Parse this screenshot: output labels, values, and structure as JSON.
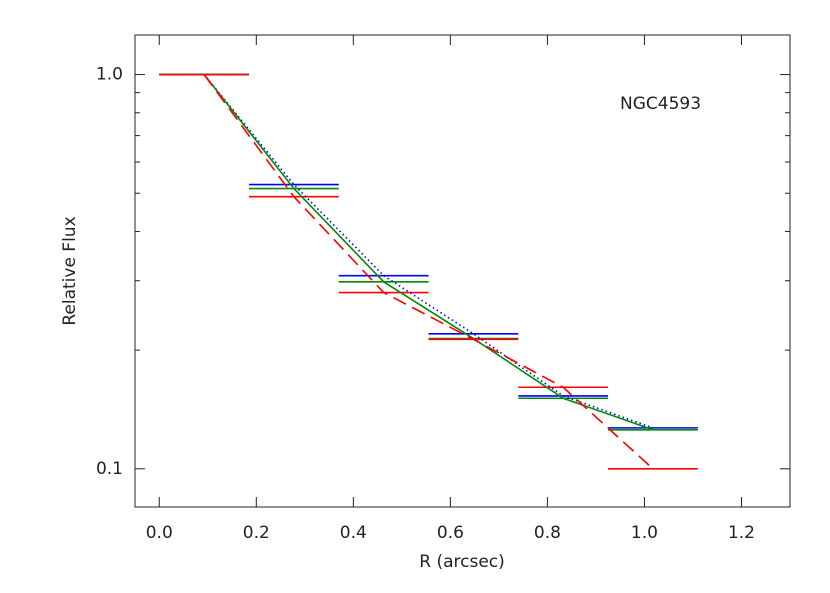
{
  "chart_data": {
    "type": "step-line",
    "annotation": "NGC4593",
    "xlabel": "R (arcsec)",
    "ylabel": "Relative Flux",
    "bins": [
      0,
      0.185,
      0.37,
      0.555,
      0.74,
      0.925,
      1.11
    ],
    "x": [
      0.0925,
      0.2775,
      0.4625,
      0.6475,
      0.8325,
      1.0175
    ],
    "series": [
      {
        "color": "#0000ff",
        "line_style": "dotted",
        "values": [
          1.0,
          0.526,
          0.309,
          0.22,
          0.153,
          0.127
        ]
      },
      {
        "color": "#008b00",
        "line_style": "solid",
        "values": [
          1.0,
          0.514,
          0.298,
          0.214,
          0.151,
          0.1256
        ]
      },
      {
        "color": "#ff0000",
        "line_style": "dashed",
        "values": [
          1.0,
          0.49,
          0.28,
          0.213,
          0.161,
          0.1
        ]
      }
    ],
    "xlim": [
      -0.05,
      1.3
    ],
    "ylim": [
      0.08,
      1.26
    ],
    "log_y": true,
    "xticks": [
      {
        "value": 0,
        "label": "0.0"
      },
      0.2,
      0.4,
      0.6,
      0.8,
      {
        "value": 1,
        "label": "1.0"
      },
      1.2
    ],
    "yticks": [
      0.1,
      {
        "value": 1,
        "label": "1.0"
      }
    ],
    "yminor_ticks": [
      0.2,
      0.3,
      0.4,
      0.5,
      0.6,
      0.7,
      0.8,
      0.9
    ]
  }
}
